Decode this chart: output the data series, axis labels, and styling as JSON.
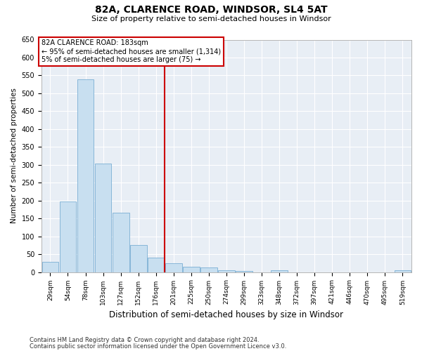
{
  "title": "82A, CLARENCE ROAD, WINDSOR, SL4 5AT",
  "subtitle": "Size of property relative to semi-detached houses in Windsor",
  "xlabel": "Distribution of semi-detached houses by size in Windsor",
  "ylabel": "Number of semi-detached properties",
  "categories": [
    "29sqm",
    "54sqm",
    "78sqm",
    "103sqm",
    "127sqm",
    "152sqm",
    "176sqm",
    "201sqm",
    "225sqm",
    "250sqm",
    "274sqm",
    "299sqm",
    "323sqm",
    "348sqm",
    "372sqm",
    "397sqm",
    "421sqm",
    "446sqm",
    "470sqm",
    "495sqm",
    "519sqm"
  ],
  "values": [
    28,
    197,
    540,
    303,
    167,
    75,
    40,
    25,
    15,
    12,
    5,
    3,
    0,
    5,
    0,
    0,
    0,
    0,
    0,
    0,
    5
  ],
  "bar_color": "#c8dff0",
  "bar_edge_color": "#7aafd4",
  "background_color": "#e8eef5",
  "grid_color": "#ffffff",
  "property_label": "82A CLARENCE ROAD: 183sqm",
  "annotation_line1": "← 95% of semi-detached houses are smaller (1,314)",
  "annotation_line2": "5% of semi-detached houses are larger (75) →",
  "vline_index": 6.5,
  "vline_color": "#cc0000",
  "box_color": "#cc0000",
  "ylim": [
    0,
    650
  ],
  "yticks": [
    0,
    50,
    100,
    150,
    200,
    250,
    300,
    350,
    400,
    450,
    500,
    550,
    600,
    650
  ],
  "footnote1": "Contains HM Land Registry data © Crown copyright and database right 2024.",
  "footnote2": "Contains public sector information licensed under the Open Government Licence v3.0."
}
